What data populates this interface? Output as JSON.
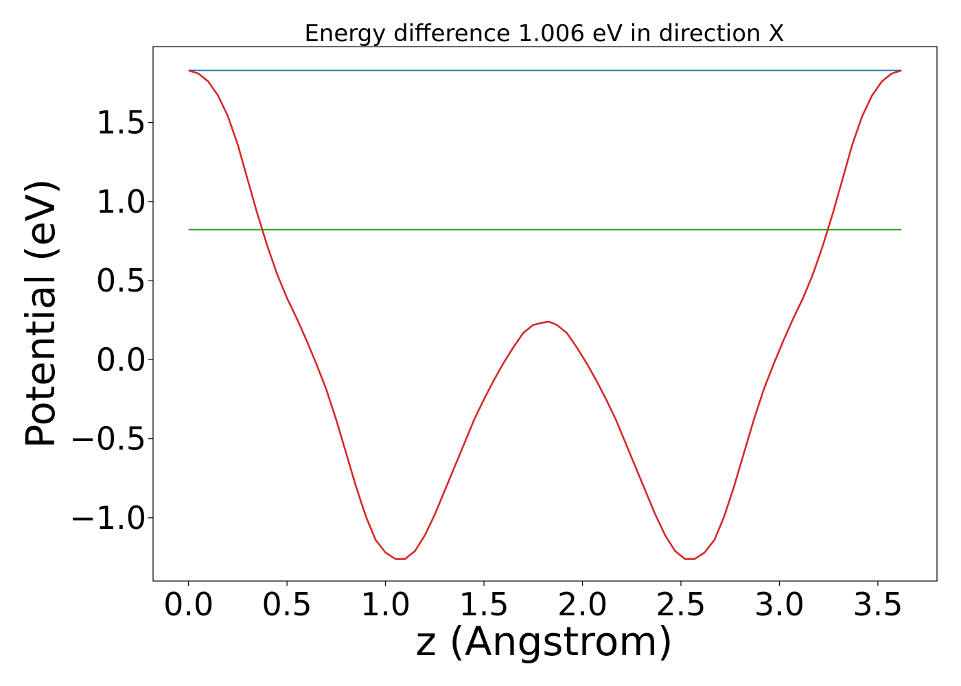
{
  "chart_data": {
    "type": "line",
    "title": "Energy difference 1.006 eV in direction X",
    "xlabel": "z (Angstrom)",
    "ylabel": "Potential (eV)",
    "xlim": [
      -0.18,
      3.8
    ],
    "ylim": [
      -1.4,
      1.98
    ],
    "xticks": [
      0.0,
      0.5,
      1.0,
      1.5,
      2.0,
      2.5,
      3.0,
      3.5
    ],
    "xtick_labels": [
      "0.0",
      "0.5",
      "1.0",
      "1.5",
      "2.0",
      "2.5",
      "3.0",
      "3.5"
    ],
    "yticks": [
      -1.0,
      -0.5,
      0.0,
      0.5,
      1.0,
      1.5
    ],
    "ytick_labels": [
      "−1.0",
      "−0.5",
      "0.0",
      "0.5",
      "1.0",
      "1.5"
    ],
    "grid": false,
    "series": [
      {
        "color": "#d62728",
        "x": [
          0.0,
          0.05,
          0.1,
          0.15,
          0.2,
          0.25,
          0.3,
          0.35,
          0.4,
          0.45,
          0.5,
          0.55,
          0.6,
          0.65,
          0.7,
          0.75,
          0.8,
          0.85,
          0.9,
          0.95,
          1.0,
          1.05,
          1.1,
          1.15,
          1.2,
          1.25,
          1.3,
          1.35,
          1.4,
          1.45,
          1.5,
          1.55,
          1.6,
          1.65,
          1.7,
          1.75,
          1.8,
          1.83,
          1.87,
          1.92,
          1.97,
          2.02,
          2.07,
          2.12,
          2.17,
          2.22,
          2.27,
          2.32,
          2.37,
          2.42,
          2.47,
          2.52,
          2.57,
          2.62,
          2.67,
          2.72,
          2.77,
          2.82,
          2.87,
          2.92,
          2.97,
          3.02,
          3.07,
          3.12,
          3.17,
          3.22,
          3.27,
          3.32,
          3.37,
          3.42,
          3.47,
          3.52,
          3.57,
          3.62
        ],
        "y": [
          1.83,
          1.81,
          1.76,
          1.67,
          1.54,
          1.36,
          1.14,
          0.92,
          0.72,
          0.54,
          0.39,
          0.26,
          0.12,
          -0.03,
          -0.19,
          -0.38,
          -0.59,
          -0.8,
          -0.99,
          -1.14,
          -1.22,
          -1.26,
          -1.26,
          -1.21,
          -1.11,
          -0.98,
          -0.83,
          -0.68,
          -0.53,
          -0.38,
          -0.25,
          -0.13,
          -0.02,
          0.08,
          0.17,
          0.22,
          0.235,
          0.24,
          0.22,
          0.17,
          0.08,
          -0.02,
          -0.13,
          -0.25,
          -0.38,
          -0.53,
          -0.68,
          -0.83,
          -0.98,
          -1.11,
          -1.21,
          -1.26,
          -1.26,
          -1.22,
          -1.14,
          -0.99,
          -0.8,
          -0.59,
          -0.38,
          -0.19,
          -0.03,
          0.12,
          0.26,
          0.39,
          0.54,
          0.72,
          0.92,
          1.14,
          1.36,
          1.54,
          1.67,
          1.76,
          1.81,
          1.83
        ]
      },
      {
        "color": "#1f77b4",
        "x": [
          0.0,
          3.62
        ],
        "y": [
          1.83,
          1.83
        ]
      },
      {
        "color": "#2ca02c",
        "x": [
          0.0,
          3.62
        ],
        "y": [
          0.823,
          0.823
        ]
      }
    ]
  }
}
